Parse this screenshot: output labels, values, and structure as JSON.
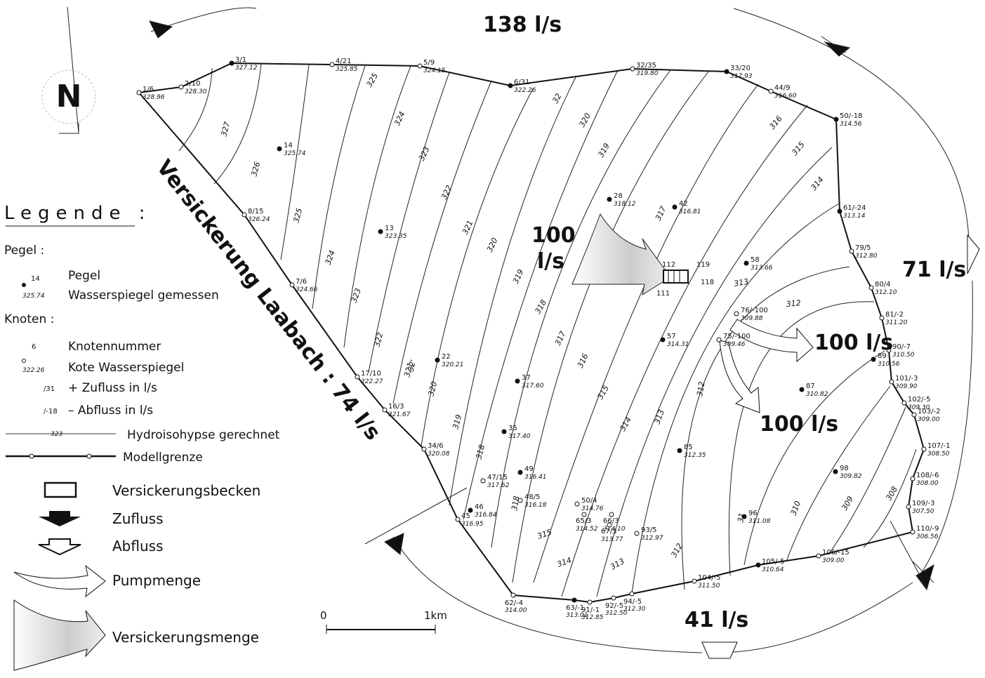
{
  "north": "N",
  "flows": [
    {
      "label": "138 l/s"
    },
    {
      "label": "71 l/s"
    },
    {
      "label": "41 l/s"
    },
    {
      "label": "100 l/s"
    },
    {
      "label": "100 l/s"
    },
    {
      "label": [
        "100",
        "l/s"
      ]
    }
  ],
  "boundary_label": "Versickerung Laabach : 74 l/s",
  "legend": {
    "title": "Legende :",
    "pegel_heading": "Pegel :",
    "pegel_number": "14",
    "pegel_level": "325.74",
    "pegel": "Pegel",
    "pegel_desc": "Wasserspiegel gemessen",
    "knoten_heading": "Knoten :",
    "knoten_number": "6",
    "knoten_number_desc": "Knotennummer",
    "knoten_level": "322.26",
    "knoten_level_desc": "Kote Wasserspiegel",
    "inflow_code": "/31",
    "inflow_desc": "+ Zufluss in l/s",
    "outflow_code": "/-18",
    "outflow_desc": "– Abfluss in l/s",
    "contour_code": "323",
    "contour_desc": "Hydroisohypse gerechnet",
    "boundary_desc": "Modellgrenze",
    "basin": "Versickerungsbecken",
    "inflow": "Zufluss",
    "outflow": "Abfluss",
    "pump": "Pumpmenge",
    "infiltration": "Versickerungsmenge"
  },
  "nodes": [
    {
      "id": "1/6",
      "level": "328.96"
    },
    {
      "id": "2/10",
      "level": "328.30"
    },
    {
      "id": "3/1",
      "level": "327.12"
    },
    {
      "id": "4/21",
      "level": "325.85"
    },
    {
      "id": "5/9",
      "level": "324.15"
    },
    {
      "id": "6/31",
      "level": "322.26"
    },
    {
      "id": "32/35",
      "level": "319.80"
    },
    {
      "id": "33/20",
      "level": "317.93"
    },
    {
      "id": "44/9",
      "level": "316.60"
    },
    {
      "id": "50/-18",
      "level": "314.56"
    },
    {
      "id": "61/-24",
      "level": "313.14"
    },
    {
      "id": "79/5",
      "level": "312.80"
    },
    {
      "id": "80/4",
      "level": "312.10"
    },
    {
      "id": "81/-2",
      "level": "311.20"
    },
    {
      "id": "90/-7",
      "level": "310.50"
    },
    {
      "id": "101/-3",
      "level": "309.90"
    },
    {
      "id": "102/-5",
      "level": "309.30"
    },
    {
      "id": "103/-2",
      "level": "309.00"
    },
    {
      "id": "107/-1",
      "level": "308.50"
    },
    {
      "id": "108/-6",
      "level": "308.00"
    },
    {
      "id": "109/-3",
      "level": "307.50"
    },
    {
      "id": "110/-9",
      "level": "306.56"
    },
    {
      "id": "106/-15",
      "level": "309.00"
    },
    {
      "id": "105/-5",
      "level": "310.64"
    },
    {
      "id": "104/-5",
      "level": "311.50"
    },
    {
      "id": "94/-5",
      "level": "312.30"
    },
    {
      "id": "92/-5",
      "level": "312.50"
    },
    {
      "id": "91/-1",
      "level": "312.85"
    },
    {
      "id": "63/-1",
      "level": "313.01"
    },
    {
      "id": "62/-4",
      "level": "314.00"
    },
    {
      "id": "45",
      "level": "316.95"
    },
    {
      "id": "34/6",
      "level": "320.08"
    },
    {
      "id": "16/3",
      "level": "321.67"
    },
    {
      "id": "17/10",
      "level": "322.27"
    },
    {
      "id": "7/6",
      "level": "324.66"
    },
    {
      "id": "8/15",
      "level": "326.24"
    }
  ],
  "gauges": [
    {
      "id": "14",
      "level": "325.74"
    },
    {
      "id": "13",
      "level": "323.35"
    },
    {
      "id": "28",
      "level": "318.12"
    },
    {
      "id": "42",
      "level": "316.81"
    },
    {
      "id": "58",
      "level": "313.66"
    },
    {
      "id": "57",
      "level": "314.31"
    },
    {
      "id": "22",
      "level": "320.21"
    },
    {
      "id": "37",
      "level": "317.60"
    },
    {
      "id": "35",
      "level": "317.40"
    },
    {
      "id": "49",
      "level": "316.41"
    },
    {
      "id": "48/5",
      "level": "316.18"
    },
    {
      "id": "46",
      "level": "316.84"
    },
    {
      "id": "47/15",
      "level": "317.62"
    },
    {
      "id": "85",
      "level": "312.35"
    },
    {
      "id": "87",
      "level": "310.82"
    },
    {
      "id": "98",
      "level": "309.82"
    },
    {
      "id": "96",
      "level": "311.08"
    },
    {
      "id": "89",
      "level": "310.56"
    },
    {
      "id": "50/4",
      "level": "314.76"
    },
    {
      "id": "65/3",
      "level": "314.52"
    },
    {
      "id": "66/3",
      "level": "314.10"
    },
    {
      "id": "67/3",
      "level": "313.77"
    },
    {
      "id": "93/5",
      "level": "312.97"
    },
    {
      "id": "76/-100",
      "level": "309.88"
    },
    {
      "id": "75/-100",
      "level": "309.46"
    }
  ],
  "basin_nodes": [
    "112",
    "119",
    "118",
    "111"
  ],
  "contours": [
    "327",
    "326",
    "325",
    "325",
    "324",
    "324",
    "323",
    "323",
    "322",
    "322",
    "321",
    "321",
    "32'",
    "320",
    "320",
    "320",
    "32",
    "319",
    "319",
    "319",
    "318",
    "318",
    "318",
    "317",
    "317",
    "316",
    "316",
    "315",
    "315",
    "315",
    "314",
    "314",
    "314",
    "313",
    "313",
    "313",
    "312",
    "312",
    "312",
    "31",
    "310",
    "309",
    "308"
  ],
  "scale": {
    "start": "0",
    "end": "1km"
  }
}
